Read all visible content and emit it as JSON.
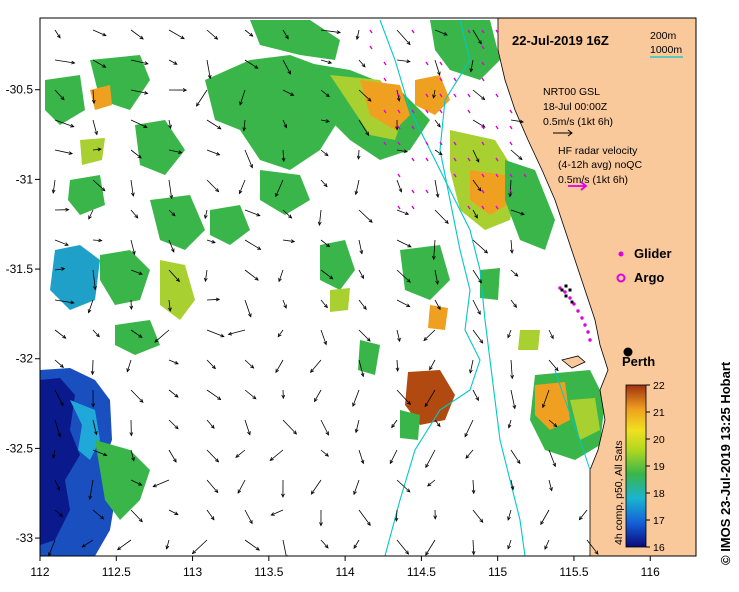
{
  "title": "22-Jul-2019 16Z",
  "depth_legend": {
    "label_200": "200m",
    "label_1000": "1000m",
    "color_200": "#000000",
    "color_1000": "#00c8c8"
  },
  "current_model": {
    "line1": "NRT00 GSL",
    "line2": "18-Jul 00:00Z",
    "line3": "0.5m/s (1kt 6h)"
  },
  "hf_radar": {
    "line1": "HF radar velocity",
    "line2": "(4-12h avg) noQC",
    "line3": "0.5m/s (1kt 6h)",
    "color": "#e000e0"
  },
  "markers": {
    "glider_label": "Glider",
    "argo_label": "Argo",
    "city_label": "Perth"
  },
  "colorbar": {
    "label": "4h comp, p50, All Sats",
    "min": 16,
    "max": 22,
    "ticks": [
      "16",
      "17",
      "18",
      "19",
      "20",
      "21",
      "22"
    ]
  },
  "axes": {
    "x_ticks": [
      "112",
      "112.5",
      "113",
      "113.5",
      "114",
      "114.5",
      "115",
      "115.5",
      "116"
    ],
    "y_ticks": [
      "-30.5",
      "-31",
      "-31.5",
      "-32",
      "-32.5",
      "-33"
    ],
    "x_range": [
      112,
      116.3
    ],
    "y_range": [
      -33.1,
      -30.1
    ]
  },
  "credit": "© IMOS 23-Jul-2019 13:25 Hobart",
  "colors": {
    "land": "#f9c89b",
    "cold": "#0a1a8c",
    "warm": "#b04a10",
    "green": "#3ab54a",
    "orange": "#f0a020"
  }
}
